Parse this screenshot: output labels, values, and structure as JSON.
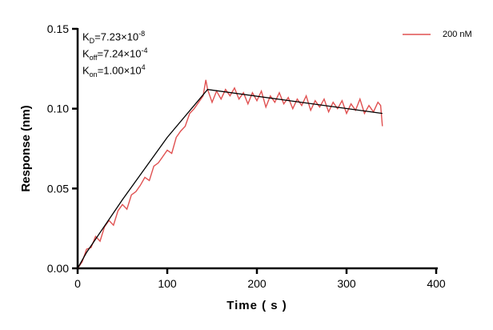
{
  "chart_data": {
    "type": "line",
    "title": "",
    "xlabel": "Time ( s )",
    "ylabel": "Response (nm)",
    "xlim": [
      0,
      400
    ],
    "ylim": [
      0,
      0.15
    ],
    "xticks": [
      "0",
      "100",
      "200",
      "300",
      "400"
    ],
    "yticks": [
      "0.00",
      "0.05",
      "0.10",
      "0.15"
    ],
    "grid": false,
    "legend_position": "top-right",
    "annotations": {
      "kd": {
        "base": "K",
        "sub": "D",
        "value": "=7.23×10",
        "exp": "-8"
      },
      "koff": {
        "base": "K",
        "sub": "off",
        "value": "=7.24×10",
        "exp": "-4"
      },
      "kon": {
        "base": "K",
        "sub": "on",
        "value": "=1.00×10",
        "exp": "4"
      }
    },
    "series": [
      {
        "name": "200 nM",
        "color": "#e05050",
        "x": [
          0,
          5,
          10,
          15,
          20,
          25,
          30,
          35,
          40,
          45,
          50,
          55,
          60,
          65,
          70,
          75,
          80,
          85,
          90,
          95,
          100,
          105,
          110,
          115,
          120,
          125,
          130,
          135,
          140,
          143,
          145,
          150,
          155,
          160,
          165,
          170,
          175,
          180,
          185,
          190,
          195,
          200,
          205,
          210,
          215,
          220,
          225,
          230,
          235,
          240,
          245,
          250,
          255,
          260,
          265,
          270,
          275,
          280,
          285,
          290,
          295,
          300,
          305,
          310,
          315,
          320,
          325,
          330,
          335,
          338,
          340
        ],
        "y": [
          0.0,
          0.004,
          0.012,
          0.013,
          0.02,
          0.017,
          0.026,
          0.03,
          0.027,
          0.036,
          0.04,
          0.037,
          0.046,
          0.048,
          0.052,
          0.057,
          0.055,
          0.064,
          0.066,
          0.07,
          0.074,
          0.072,
          0.082,
          0.086,
          0.089,
          0.097,
          0.1,
          0.104,
          0.108,
          0.118,
          0.112,
          0.104,
          0.111,
          0.106,
          0.112,
          0.108,
          0.113,
          0.106,
          0.11,
          0.103,
          0.11,
          0.105,
          0.111,
          0.101,
          0.108,
          0.104,
          0.11,
          0.103,
          0.107,
          0.1,
          0.106,
          0.102,
          0.108,
          0.099,
          0.105,
          0.101,
          0.106,
          0.098,
          0.104,
          0.1,
          0.105,
          0.097,
          0.103,
          0.099,
          0.106,
          0.097,
          0.102,
          0.098,
          0.104,
          0.102,
          0.089
        ]
      },
      {
        "role": "fit",
        "color": "#000000",
        "x": [
          0,
          10,
          50,
          100,
          145,
          340
        ],
        "y": [
          0.0,
          0.01,
          0.043,
          0.082,
          0.112,
          0.097
        ]
      }
    ]
  }
}
